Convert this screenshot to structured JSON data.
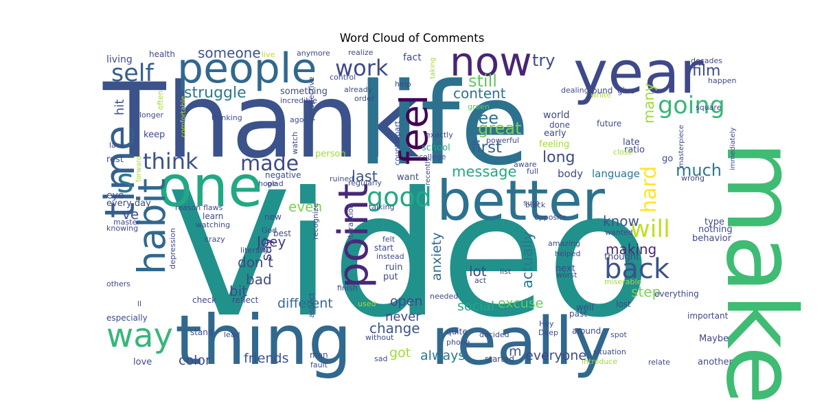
{
  "chart_data": {
    "type": "wordcloud",
    "title": "Word Cloud of Comments",
    "background": "#ffffff",
    "colormap": "viridis",
    "words": [
      {
        "text": "Video",
        "weight": 1.0,
        "color": "#21918c"
      },
      {
        "text": "Thank",
        "weight": 0.85,
        "color": "#3b528b"
      },
      {
        "text": "life",
        "weight": 0.85,
        "color": "#2c728e"
      },
      {
        "text": "make",
        "weight": 0.75,
        "color": "#3fbc73"
      },
      {
        "text": "thing",
        "weight": 0.65,
        "color": "#31688e"
      },
      {
        "text": "really",
        "weight": 0.62,
        "color": "#31688e"
      },
      {
        "text": "year",
        "weight": 0.55,
        "color": "#3e4989"
      },
      {
        "text": "one",
        "weight": 0.52,
        "color": "#22a884"
      },
      {
        "text": "better",
        "weight": 0.5,
        "color": "#2c728e"
      },
      {
        "text": "people",
        "weight": 0.45,
        "color": "#31688e"
      },
      {
        "text": "time",
        "weight": 0.4,
        "color": "#355f8d"
      },
      {
        "text": "habit",
        "weight": 0.38,
        "color": "#31688e"
      },
      {
        "text": "now",
        "weight": 0.4,
        "color": "#482576"
      },
      {
        "text": "feel",
        "weight": 0.38,
        "color": "#440154"
      },
      {
        "text": "point",
        "weight": 0.36,
        "color": "#482878"
      },
      {
        "text": "way",
        "weight": 0.35,
        "color": "#35b779"
      },
      {
        "text": "s",
        "weight": 0.35,
        "color": "#2a788e"
      },
      {
        "text": "self",
        "weight": 0.32,
        "color": "#355f8d"
      },
      {
        "text": "good",
        "weight": 0.3,
        "color": "#22a884"
      },
      {
        "text": "back",
        "weight": 0.3,
        "color": "#3b528b"
      },
      {
        "text": "going",
        "weight": 0.28,
        "color": "#35b779"
      },
      {
        "text": "work",
        "weight": 0.26,
        "color": "#3e4989"
      },
      {
        "text": "think",
        "weight": 0.25,
        "color": "#3b528b"
      },
      {
        "text": "made",
        "weight": 0.25,
        "color": "#3e4989"
      },
      {
        "text": "will",
        "weight": 0.24,
        "color": "#bddf26"
      },
      {
        "text": "hard",
        "weight": 0.22,
        "color": "#fde725"
      },
      {
        "text": "struggle",
        "weight": 0.18,
        "color": "#2a788e"
      },
      {
        "text": "still",
        "weight": 0.18,
        "color": "#5ec962"
      },
      {
        "text": "try",
        "weight": 0.17,
        "color": "#3e4989"
      },
      {
        "text": "someone",
        "weight": 0.16,
        "color": "#3b528b"
      },
      {
        "text": "film",
        "weight": 0.16,
        "color": "#3e4989"
      },
      {
        "text": "content",
        "weight": 0.16,
        "color": "#2c728e"
      },
      {
        "text": "see",
        "weight": 0.18,
        "color": "#2c728e"
      },
      {
        "text": "great",
        "weight": 0.18,
        "color": "#7ad151"
      },
      {
        "text": "first",
        "weight": 0.18,
        "color": "#355f8d"
      },
      {
        "text": "much",
        "weight": 0.18,
        "color": "#2a788e"
      },
      {
        "text": "long",
        "weight": 0.17,
        "color": "#3e4989"
      },
      {
        "text": "many",
        "weight": 0.16,
        "color": "#a0da39"
      },
      {
        "text": "message",
        "weight": 0.16,
        "color": "#22a884"
      },
      {
        "text": "last",
        "weight": 0.15,
        "color": "#3b528b"
      },
      {
        "text": "even",
        "weight": 0.15,
        "color": "#7ad151"
      },
      {
        "text": "know",
        "weight": 0.15,
        "color": "#3b528b"
      },
      {
        "text": "making",
        "weight": 0.15,
        "color": "#482878"
      },
      {
        "text": "Joey",
        "weight": 0.14,
        "color": "#443983"
      },
      {
        "text": "don t",
        "weight": 0.14,
        "color": "#3e4989"
      },
      {
        "text": "say",
        "weight": 0.14,
        "color": "#443983"
      },
      {
        "text": "bad",
        "weight": 0.15,
        "color": "#3e4989"
      },
      {
        "text": "bit",
        "weight": 0.14,
        "color": "#3e4989"
      },
      {
        "text": "ve",
        "weight": 0.14,
        "color": "#3b528b"
      },
      {
        "text": "lot",
        "weight": 0.15,
        "color": "#3e4989"
      },
      {
        "text": "actually",
        "weight": 0.15,
        "color": "#2a788e"
      },
      {
        "text": "anxiety",
        "weight": 0.14,
        "color": "#31688e"
      },
      {
        "text": "step",
        "weight": 0.15,
        "color": "#7ad151"
      },
      {
        "text": "excuse",
        "weight": 0.14,
        "color": "#5ec962"
      },
      {
        "text": "social",
        "weight": 0.14,
        "color": "#22a884"
      },
      {
        "text": "open",
        "weight": 0.14,
        "color": "#3e4989"
      },
      {
        "text": "different",
        "weight": 0.15,
        "color": "#31688e"
      },
      {
        "text": "change",
        "weight": 0.15,
        "color": "#3b528b"
      },
      {
        "text": "never",
        "weight": 0.13,
        "color": "#3e4989"
      },
      {
        "text": "got",
        "weight": 0.13,
        "color": "#a0da39"
      },
      {
        "text": "always",
        "weight": 0.14,
        "color": "#2a788e"
      },
      {
        "text": "m",
        "weight": 0.13,
        "color": "#3b528b"
      },
      {
        "text": "everyone",
        "weight": 0.14,
        "color": "#3e4989"
      },
      {
        "text": "friends",
        "weight": 0.14,
        "color": "#3b528b"
      },
      {
        "text": "color",
        "weight": 0.15,
        "color": "#3e4989"
      },
      {
        "text": "hit",
        "weight": 0.12,
        "color": "#3b528b"
      },
      {
        "text": "body",
        "weight": 0.1,
        "color": "#3e4989"
      },
      {
        "text": "language",
        "weight": 0.1,
        "color": "#2c728e"
      },
      {
        "text": "living",
        "weight": 0.08,
        "color": "#3e4989"
      },
      {
        "text": "health",
        "weight": 0.08,
        "color": "#3e4989"
      },
      {
        "text": "live",
        "weight": 0.06,
        "color": "#b5de2b"
      },
      {
        "text": "anymore",
        "weight": 0.06,
        "color": "#3e4989"
      },
      {
        "text": "fact",
        "weight": 0.07,
        "color": "#3e4989"
      },
      {
        "text": "realize",
        "weight": 0.06,
        "color": "#3e4989"
      },
      {
        "text": "control",
        "weight": 0.06,
        "color": "#3e4989"
      },
      {
        "text": "taking",
        "weight": 0.05,
        "color": "#a0da39"
      },
      {
        "text": "something",
        "weight": 0.07,
        "color": "#3e4989"
      },
      {
        "text": "incredible",
        "weight": 0.06,
        "color": "#3e4989"
      },
      {
        "text": "already",
        "weight": 0.06,
        "color": "#3e4989"
      },
      {
        "text": "order",
        "weight": 0.06,
        "color": "#3e4989"
      },
      {
        "text": "help",
        "weight": 0.06,
        "color": "#3e4989"
      },
      {
        "text": "often",
        "weight": 0.05,
        "color": "#a0da39"
      },
      {
        "text": "longer",
        "weight": 0.05,
        "color": "#3e4989"
      },
      {
        "text": "comfortable",
        "weight": 0.05,
        "color": "#b5de2b"
      },
      {
        "text": "thinking",
        "weight": 0.06,
        "color": "#3e4989"
      },
      {
        "text": "ago",
        "weight": 0.05,
        "color": "#3e4989"
      },
      {
        "text": "perspective",
        "weight": 0.05,
        "color": "#3e4989"
      },
      {
        "text": "watch",
        "weight": 0.05,
        "color": "#3e4989"
      },
      {
        "text": "counterpart",
        "weight": 0.06,
        "color": "#3e4989"
      },
      {
        "text": "green",
        "weight": 0.05,
        "color": "#5ec962"
      },
      {
        "text": "powerful",
        "weight": 0.06,
        "color": "#3e4989"
      },
      {
        "text": "exactly",
        "weight": 0.06,
        "color": "#3e4989"
      },
      {
        "text": "keep",
        "weight": 0.07,
        "color": "#3e4989"
      },
      {
        "text": "lack",
        "weight": 0.05,
        "color": "#3e4989"
      },
      {
        "text": "rest",
        "weight": 0.06,
        "color": "#3e4989"
      },
      {
        "text": "person",
        "weight": 0.06,
        "color": "#a0da39"
      },
      {
        "text": "school",
        "weight": 0.06,
        "color": "#22a884"
      },
      {
        "text": "college",
        "weight": 0.06,
        "color": "#3e4989"
      },
      {
        "text": "world",
        "weight": 0.07,
        "color": "#3e4989"
      },
      {
        "text": "done",
        "weight": 0.06,
        "color": "#3e4989"
      },
      {
        "text": "early",
        "weight": 0.07,
        "color": "#3e4989"
      },
      {
        "text": "future",
        "weight": 0.06,
        "color": "#3e4989"
      },
      {
        "text": "feeling",
        "weight": 0.07,
        "color": "#a0da39"
      },
      {
        "text": "late",
        "weight": 0.06,
        "color": "#3e4989"
      },
      {
        "text": "ratio",
        "weight": 0.06,
        "color": "#3e4989"
      },
      {
        "text": "close",
        "weight": 0.05,
        "color": "#a0da39"
      },
      {
        "text": "dealing",
        "weight": 0.05,
        "color": "#3e4989"
      },
      {
        "text": "found",
        "weight": 0.06,
        "color": "#3e4989"
      },
      {
        "text": "white",
        "weight": 0.05,
        "color": "#b5de2b"
      },
      {
        "text": "give",
        "weight": 0.06,
        "color": "#3e4989"
      },
      {
        "text": "decades",
        "weight": 0.06,
        "color": "#3e4989"
      },
      {
        "text": "happen",
        "weight": 0.06,
        "color": "#3e4989"
      },
      {
        "text": "square",
        "weight": 0.05,
        "color": "#3e4989"
      },
      {
        "text": "aware",
        "weight": 0.06,
        "color": "#3e4989"
      },
      {
        "text": "full",
        "weight": 0.05,
        "color": "#3e4989"
      },
      {
        "text": "go",
        "weight": 0.06,
        "color": "#3e4989"
      },
      {
        "text": "wrong",
        "weight": 0.05,
        "color": "#3e4989"
      },
      {
        "text": "masterpiece",
        "weight": 0.05,
        "color": "#3e4989"
      },
      {
        "text": "immediately",
        "weight": 0.05,
        "color": "#3e4989"
      },
      {
        "text": "type",
        "weight": 0.06,
        "color": "#3e4989"
      },
      {
        "text": "nothing",
        "weight": 0.06,
        "color": "#3e4989"
      },
      {
        "text": "behavior",
        "weight": 0.06,
        "color": "#3e4989"
      },
      {
        "text": "eye",
        "weight": 0.07,
        "color": "#3e4989"
      },
      {
        "text": "every day",
        "weight": 0.06,
        "color": "#3e4989"
      },
      {
        "text": "master",
        "weight": 0.05,
        "color": "#3e4989"
      },
      {
        "text": "knowing",
        "weight": 0.05,
        "color": "#3e4989"
      },
      {
        "text": "forward",
        "weight": 0.04,
        "color": "#a0da39"
      },
      {
        "text": "hope",
        "weight": 0.05,
        "color": "#3e4989"
      },
      {
        "text": "glad",
        "weight": 0.05,
        "color": "#3e4989"
      },
      {
        "text": "negative",
        "weight": 0.06,
        "color": "#3e4989"
      },
      {
        "text": "ruined",
        "weight": 0.05,
        "color": "#3e4989"
      },
      {
        "text": "regularly",
        "weight": 0.05,
        "color": "#3e4989"
      },
      {
        "text": "want",
        "weight": 0.06,
        "color": "#3e4989"
      },
      {
        "text": "recently",
        "weight": 0.05,
        "color": "#3e4989"
      },
      {
        "text": "reason",
        "weight": 0.06,
        "color": "#3e4989"
      },
      {
        "text": "flaws",
        "weight": 0.06,
        "color": "#3e4989"
      },
      {
        "text": "learn",
        "weight": 0.06,
        "color": "#3e4989"
      },
      {
        "text": "watching",
        "weight": 0.05,
        "color": "#3e4989"
      },
      {
        "text": "new",
        "weight": 0.06,
        "color": "#3e4989"
      },
      {
        "text": "God",
        "weight": 0.05,
        "color": "#3e4989"
      },
      {
        "text": "crazy",
        "weight": 0.05,
        "color": "#3e4989"
      },
      {
        "text": "best",
        "weight": 0.06,
        "color": "#3e4989"
      },
      {
        "text": "literally",
        "weight": 0.06,
        "color": "#3e4989"
      },
      {
        "text": "recognize",
        "weight": 0.05,
        "color": "#3e4989"
      },
      {
        "text": "interaction",
        "weight": 0.05,
        "color": "#3e4989"
      },
      {
        "text": "felt",
        "weight": 0.05,
        "color": "#3e4989"
      },
      {
        "text": "start",
        "weight": 0.06,
        "color": "#3e4989"
      },
      {
        "text": "instead",
        "weight": 0.05,
        "color": "#3e4989"
      },
      {
        "text": "ruin",
        "weight": 0.06,
        "color": "#3e4989"
      },
      {
        "text": "put",
        "weight": 0.06,
        "color": "#3e4989"
      },
      {
        "text": "talking",
        "weight": 0.05,
        "color": "#3e4989"
      },
      {
        "text": "sure",
        "weight": 0.05,
        "color": "#3e4989"
      },
      {
        "text": "black",
        "weight": 0.05,
        "color": "#3e4989"
      },
      {
        "text": "opposite",
        "weight": 0.05,
        "color": "#3e4989"
      },
      {
        "text": "wanted",
        "weight": 0.05,
        "color": "#3e4989"
      },
      {
        "text": "amazing",
        "weight": 0.05,
        "color": "#3e4989"
      },
      {
        "text": "helped",
        "weight": 0.05,
        "color": "#3e4989"
      },
      {
        "text": "thought",
        "weight": 0.06,
        "color": "#3e4989"
      },
      {
        "text": "next",
        "weight": 0.06,
        "color": "#3e4989"
      },
      {
        "text": "worst",
        "weight": 0.05,
        "color": "#3e4989"
      },
      {
        "text": "list",
        "weight": 0.05,
        "color": "#3e4989"
      },
      {
        "text": "act",
        "weight": 0.05,
        "color": "#3e4989"
      },
      {
        "text": "miserable",
        "weight": 0.05,
        "color": "#a0da39"
      },
      {
        "text": "others",
        "weight": 0.05,
        "color": "#3e4989"
      },
      {
        "text": "ll",
        "weight": 0.05,
        "color": "#3e4989"
      },
      {
        "text": "depression",
        "weight": 0.05,
        "color": "#3e4989"
      },
      {
        "text": "check",
        "weight": 0.06,
        "color": "#3e4989"
      },
      {
        "text": "reflect",
        "weight": 0.06,
        "color": "#3e4989"
      },
      {
        "text": "finish",
        "weight": 0.05,
        "color": "#3e4989"
      },
      {
        "text": "used",
        "weight": 0.05,
        "color": "#a0da39"
      },
      {
        "text": "needed",
        "weight": 0.05,
        "color": "#3e4989"
      },
      {
        "text": "lost",
        "weight": 0.06,
        "color": "#3e4989"
      },
      {
        "text": "well",
        "weight": 0.06,
        "color": "#3e4989"
      },
      {
        "text": "everything",
        "weight": 0.06,
        "color": "#3e4989"
      },
      {
        "text": "especially",
        "weight": 0.05,
        "color": "#3e4989"
      },
      {
        "text": "aspect",
        "weight": 0.05,
        "color": "#3e4989"
      },
      {
        "text": "stand",
        "weight": 0.05,
        "color": "#3e4989"
      },
      {
        "text": "lead",
        "weight": 0.05,
        "color": "#3e4989"
      },
      {
        "text": "without",
        "weight": 0.05,
        "color": "#3e4989"
      },
      {
        "text": "quite",
        "weight": 0.06,
        "color": "#3e4989"
      },
      {
        "text": "phone",
        "weight": 0.05,
        "color": "#3e4989"
      },
      {
        "text": "decided",
        "weight": 0.05,
        "color": "#3e4989"
      },
      {
        "text": "Hey",
        "weight": 0.05,
        "color": "#3e4989"
      },
      {
        "text": "Deep",
        "weight": 0.05,
        "color": "#3e4989"
      },
      {
        "text": "past",
        "weight": 0.06,
        "color": "#3e4989"
      },
      {
        "text": "around",
        "weight": 0.06,
        "color": "#3e4989"
      },
      {
        "text": "spot",
        "weight": 0.05,
        "color": "#3e4989"
      },
      {
        "text": "important",
        "weight": 0.06,
        "color": "#3e4989"
      },
      {
        "text": "Maybe",
        "weight": 0.06,
        "color": "#3e4989"
      },
      {
        "text": "situation",
        "weight": 0.05,
        "color": "#3e4989"
      },
      {
        "text": "introduce",
        "weight": 0.05,
        "color": "#a0da39"
      },
      {
        "text": "relate",
        "weight": 0.05,
        "color": "#3e4989"
      },
      {
        "text": "another",
        "weight": 0.06,
        "color": "#3e4989"
      },
      {
        "text": "love",
        "weight": 0.06,
        "color": "#3e4989"
      },
      {
        "text": "man",
        "weight": 0.06,
        "color": "#3e4989"
      },
      {
        "text": "fault",
        "weight": 0.05,
        "color": "#3e4989"
      },
      {
        "text": "sad",
        "weight": 0.05,
        "color": "#3e4989"
      },
      {
        "text": "started",
        "weight": 0.05,
        "color": "#3e4989"
      }
    ]
  }
}
